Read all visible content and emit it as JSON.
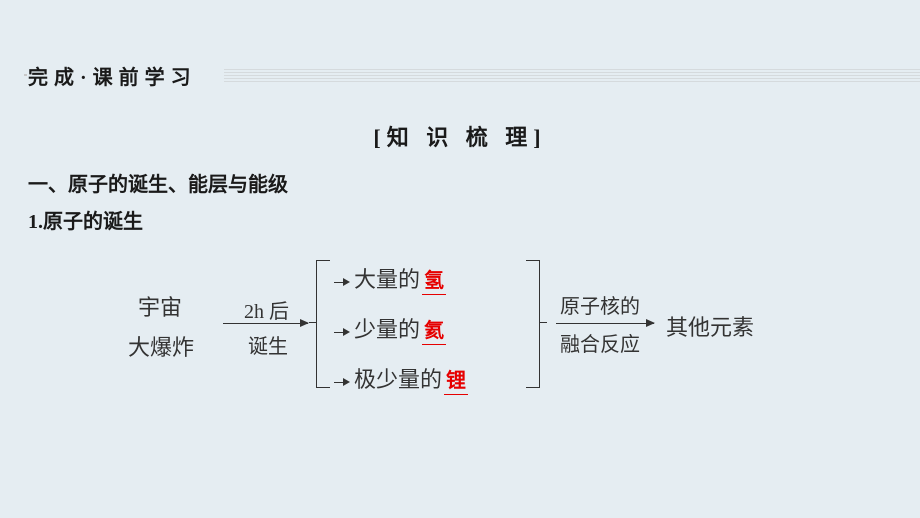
{
  "header": {
    "label": "完成·课前学习"
  },
  "section_title": "[知 识 梳 理]",
  "heading1": "一、原子的诞生、能层与能级",
  "heading2": "1.原子的诞生",
  "diagram": {
    "left_top": "宇宙",
    "left_bot": "大爆炸",
    "arrow1_top": "2h 后",
    "arrow1_bot": "诞生",
    "rows": [
      {
        "pre": "大量的",
        "hl": "氢"
      },
      {
        "pre": "少量的",
        "hl": "氦"
      },
      {
        "pre": "极少量的",
        "hl": "锂"
      }
    ],
    "mid_top": "原子核的",
    "mid_bot": "融合反应",
    "right": "其他元素",
    "colors": {
      "highlight": "#e60000",
      "text": "#333333",
      "bg": "#e5edf2"
    }
  }
}
